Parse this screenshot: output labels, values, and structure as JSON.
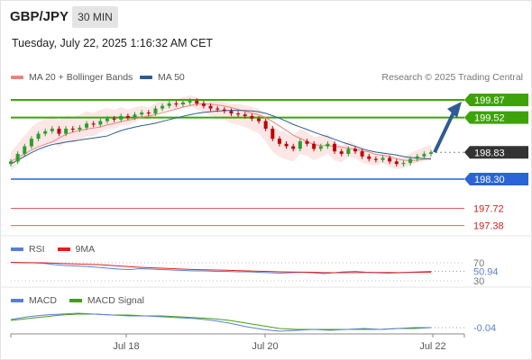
{
  "header": {
    "symbol": "GBP/JPY",
    "timeframe": "30 MIN",
    "datetime": "Tuesday, July 22, 2025 1:16:32 AM CET",
    "research": "Research © 2025 Trading Central"
  },
  "legend": {
    "bollinger": {
      "label": "MA 20 + Bollinger Bands",
      "color": "#f08080"
    },
    "ma50": {
      "label": "MA 50",
      "color": "#2f5b94"
    }
  },
  "rsi_legend": {
    "rsi": {
      "label": "RSI",
      "color": "#5b7fd6"
    },
    "ma9": {
      "label": "9MA",
      "color": "#e02020"
    }
  },
  "macd_legend": {
    "macd": {
      "label": "MACD",
      "color": "#5b7fd6"
    },
    "signal": {
      "label": "MACD Signal",
      "color": "#44a010"
    }
  },
  "colors": {
    "green_level": "#3ea30a",
    "blue_level": "#2a64d6",
    "red_level": "#e06060",
    "current_price": "#333333",
    "arrow": "#2f5b94",
    "candle_up": "#2aa02a",
    "candle_down": "#c00000",
    "band_fill": "#fbe0e0"
  },
  "chart_data": {
    "type": "candlestick",
    "ylim": [
      197.2,
      200.2
    ],
    "x_ticks": [
      "Jul 18",
      "Jul 20",
      "Jul 22"
    ],
    "price_levels": [
      {
        "value": 199.87,
        "label": "199.87",
        "kind": "resistance"
      },
      {
        "value": 199.52,
        "label": "199.52",
        "kind": "resistance"
      },
      {
        "value": 198.83,
        "label": "198.83",
        "kind": "current"
      },
      {
        "value": 198.3,
        "label": "198.30",
        "kind": "support"
      },
      {
        "value": 197.72,
        "label": "197.72",
        "kind": "minor"
      },
      {
        "value": 197.38,
        "label": "197.38",
        "kind": "minor"
      }
    ],
    "forecast_arrow": {
      "from": 198.83,
      "to": 199.8
    },
    "closes": [
      198.65,
      198.8,
      198.95,
      199.1,
      199.2,
      199.25,
      199.3,
      199.2,
      199.3,
      199.28,
      199.32,
      199.4,
      199.38,
      199.45,
      199.5,
      199.48,
      199.55,
      199.52,
      199.58,
      199.62,
      199.6,
      199.7,
      199.75,
      199.8,
      199.78,
      199.82,
      199.85,
      199.8,
      199.75,
      199.7,
      199.68,
      199.65,
      199.6,
      199.58,
      199.55,
      199.5,
      199.45,
      199.3,
      199.1,
      199.0,
      198.95,
      198.9,
      199.05,
      199.0,
      198.9,
      198.95,
      199.0,
      198.85,
      198.8,
      198.9,
      198.85,
      198.75,
      198.7,
      198.68,
      198.72,
      198.65,
      198.6,
      198.62,
      198.7,
      198.75,
      198.8,
      198.83
    ],
    "rsi": {
      "levels": [
        70,
        30
      ],
      "value_label": "50.94",
      "values": [
        71,
        70,
        70,
        69,
        66,
        64,
        63,
        62,
        60,
        58,
        56,
        55,
        57,
        56,
        55,
        54,
        53,
        52,
        52,
        51,
        51,
        50,
        50,
        49,
        48,
        47,
        48,
        49,
        48,
        46,
        48,
        50,
        51,
        49,
        48,
        47,
        48,
        49,
        50,
        50.94
      ]
    },
    "macd": {
      "value_label": "-0.04",
      "macd": [
        0.05,
        0.08,
        0.1,
        0.11,
        0.12,
        0.11,
        0.1,
        0.09,
        0.09,
        0.08,
        0.07,
        0.06,
        0.04,
        0.01,
        -0.03,
        -0.06,
        -0.08,
        -0.07,
        -0.06,
        -0.07,
        -0.06,
        -0.05,
        -0.06,
        -0.05,
        -0.04,
        -0.04
      ],
      "signal": [
        0.04,
        0.06,
        0.08,
        0.1,
        0.11,
        0.11,
        0.1,
        0.1,
        0.09,
        0.09,
        0.08,
        0.07,
        0.06,
        0.04,
        0.01,
        -0.02,
        -0.05,
        -0.06,
        -0.06,
        -0.06,
        -0.06,
        -0.06,
        -0.06,
        -0.05,
        -0.05,
        -0.04
      ]
    }
  }
}
